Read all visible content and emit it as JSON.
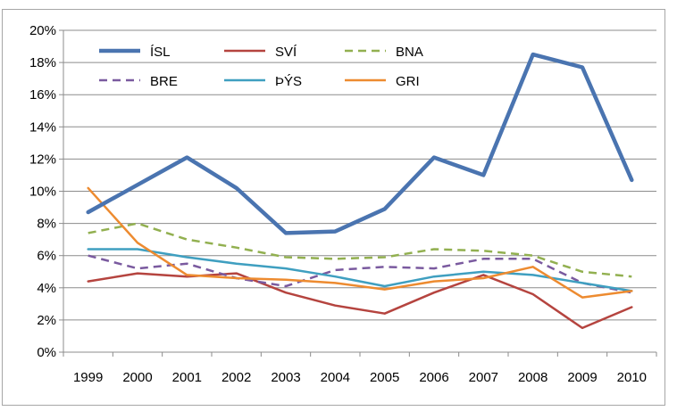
{
  "chart_data": {
    "type": "line",
    "x": [
      "1999",
      "2000",
      "2001",
      "2002",
      "2003",
      "2004",
      "2005",
      "2006",
      "2007",
      "2008",
      "2009",
      "2010"
    ],
    "ylim": [
      0,
      20
    ],
    "yticks": [
      0,
      2,
      4,
      6,
      8,
      10,
      12,
      14,
      16,
      18,
      20
    ],
    "ytick_labels": [
      "0%",
      "2%",
      "4%",
      "6%",
      "8%",
      "10%",
      "12%",
      "14%",
      "16%",
      "18%",
      "20%"
    ],
    "grid": true,
    "legend_position": "top-left inside plot",
    "series": [
      {
        "name": "ÍSL",
        "color": "#4a74b0",
        "dash": "solid",
        "width": 4.5,
        "values": [
          8.7,
          10.4,
          12.1,
          10.2,
          7.4,
          7.5,
          8.9,
          12.1,
          11.0,
          18.5,
          17.7,
          10.7
        ]
      },
      {
        "name": "SVÍ",
        "color": "#b5443f",
        "dash": "solid",
        "width": 2.5,
        "values": [
          4.4,
          4.9,
          4.7,
          4.9,
          3.7,
          2.9,
          2.4,
          3.7,
          4.8,
          3.6,
          1.5,
          2.8
        ]
      },
      {
        "name": "BNA",
        "color": "#92b050",
        "dash": "dashed",
        "width": 2.5,
        "values": [
          7.4,
          8.0,
          7.0,
          6.5,
          5.9,
          5.8,
          5.9,
          6.4,
          6.3,
          6.0,
          5.0,
          4.7
        ]
      },
      {
        "name": "BRE",
        "color": "#7a5a9f",
        "dash": "dashed",
        "width": 2.5,
        "values": [
          6.0,
          5.2,
          5.5,
          4.6,
          4.1,
          5.1,
          5.3,
          5.2,
          5.8,
          5.8,
          4.3,
          3.7
        ]
      },
      {
        "name": "ÞÝS",
        "color": "#3f9fc0",
        "dash": "solid",
        "width": 2.5,
        "values": [
          6.4,
          6.4,
          5.9,
          5.5,
          5.2,
          4.7,
          4.1,
          4.7,
          5.0,
          4.8,
          4.3,
          3.8
        ]
      },
      {
        "name": "GRI",
        "color": "#ed8b30",
        "dash": "solid",
        "width": 2.5,
        "values": [
          10.2,
          6.8,
          4.8,
          4.6,
          4.5,
          4.3,
          3.9,
          4.4,
          4.6,
          5.3,
          3.4,
          3.8
        ]
      }
    ]
  }
}
